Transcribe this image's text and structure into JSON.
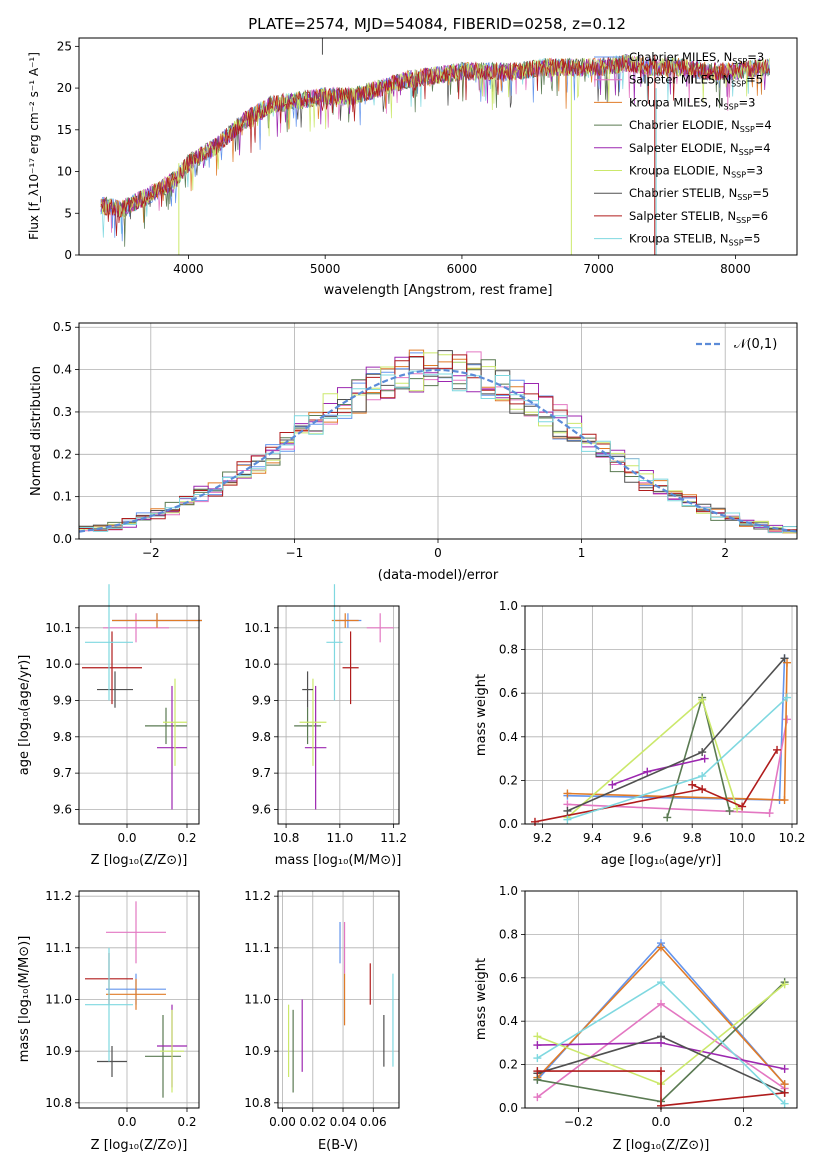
{
  "figure": {
    "title": "PLATE=2574, MJD=54084, FIBERID=0258, z=0.12"
  },
  "legend": [
    {
      "model": "Chabrier MILES",
      "n": "3",
      "color": "#6495ed"
    },
    {
      "model": "Salpeter MILES",
      "n": "5",
      "color": "#e377c2"
    },
    {
      "model": "Kroupa MILES",
      "n": "3",
      "color": "#e07b28"
    },
    {
      "model": "Chabrier ELODIE",
      "n": "4",
      "color": "#5a7a52"
    },
    {
      "model": "Salpeter ELODIE",
      "n": "4",
      "color": "#9c27b0"
    },
    {
      "model": "Kroupa ELODIE",
      "n": "3",
      "color": "#cbe86b"
    },
    {
      "model": "Chabrier STELIB",
      "n": "5",
      "color": "#505050"
    },
    {
      "model": "Salpeter STELIB",
      "n": "6",
      "color": "#b01c1c"
    },
    {
      "model": "Kroupa STELIB",
      "n": "5",
      "color": "#7fd8e0"
    }
  ],
  "chart_data": [
    {
      "id": "spectrum",
      "type": "line",
      "xlabel": "wavelength [Angstrom, rest frame]",
      "ylabel": "Flux [f_λ10⁻¹⁷ erg cm⁻² s⁻¹ A⁻¹]",
      "xlim": [
        3200,
        8450
      ],
      "ylim": [
        0,
        26
      ],
      "xticks": [
        4000,
        5000,
        6000,
        7000,
        8000
      ],
      "yticks": [
        0,
        5,
        10,
        15,
        20,
        25
      ],
      "grid": false,
      "x": [
        3350,
        3500,
        3700,
        3900,
        4000,
        4200,
        4400,
        4600,
        4800,
        5000,
        5200,
        5400,
        5600,
        5800,
        6000,
        6200,
        6400,
        6600,
        6800,
        7000,
        7200,
        7400,
        7600,
        7800,
        8000,
        8200
      ],
      "y": [
        6,
        5.5,
        7,
        9,
        11,
        13,
        16,
        18,
        18.5,
        19,
        19,
        20,
        21,
        21.5,
        22,
        22,
        22,
        22.5,
        22.5,
        22.5,
        23,
        22.5,
        22.5,
        22,
        22,
        22.5
      ]
    },
    {
      "id": "residuals",
      "type": "histogram",
      "xlabel": "(data-model)/error",
      "ylabel": "Normed distribution",
      "xlim": [
        -2.5,
        2.5
      ],
      "ylim": [
        0,
        0.51
      ],
      "xticks": [
        -2,
        -1,
        0,
        1,
        2
      ],
      "yticks": [
        0.0,
        0.1,
        0.2,
        0.3,
        0.4,
        0.5
      ],
      "grid": true,
      "reference_label": "𝒩(0,1)",
      "reference_color": "#5b8bd8"
    },
    {
      "id": "age_vs_Z",
      "type": "scatter",
      "xlabel": "Z [log₁₀(Z/Z⊙)]",
      "ylabel": "age  [log₁₀(age/yr)]",
      "xlim": [
        -0.16,
        0.24
      ],
      "ylim": [
        9.56,
        10.16
      ],
      "xticks": [
        0.0,
        0.2
      ],
      "yticks": [
        9.6,
        9.7,
        9.8,
        9.9,
        10.0,
        10.1
      ],
      "grid": true,
      "points": [
        {
          "x": 0.1,
          "y": 10.12,
          "xe": 0.15,
          "ye": 0.02
        },
        {
          "x": 0.03,
          "y": 10.1,
          "xe": 0.11,
          "ye": 0.04
        },
        {
          "x": 0.1,
          "y": 10.12,
          "xe": 0.15,
          "ye": 0.02
        },
        {
          "x": 0.13,
          "y": 9.83,
          "xe": 0.07,
          "ye": 0.05
        },
        {
          "x": 0.15,
          "y": 9.77,
          "xe": 0.05,
          "ye": 0.17
        },
        {
          "x": 0.16,
          "y": 9.84,
          "xe": 0.04,
          "ye": 0.12
        },
        {
          "x": -0.04,
          "y": 9.93,
          "xe": 0.06,
          "ye": 0.05
        },
        {
          "x": -0.05,
          "y": 9.99,
          "xe": 0.1,
          "ye": 0.1
        },
        {
          "x": -0.06,
          "y": 10.06,
          "xe": 0.08,
          "ye": 0.16
        }
      ]
    },
    {
      "id": "age_vs_mass",
      "type": "scatter",
      "xlabel": "mass [log₁₀(M/M⊙)]",
      "ylabel": "",
      "xlim": [
        10.77,
        11.22
      ],
      "ylim": [
        9.56,
        10.16
      ],
      "xticks": [
        10.8,
        11.0,
        11.2
      ],
      "yticks": [
        9.6,
        9.7,
        9.8,
        9.9,
        10.0,
        10.1
      ],
      "grid": true,
      "points": [
        {
          "x": 11.03,
          "y": 10.12,
          "xe": 0.05,
          "ye": 0.02
        },
        {
          "x": 11.15,
          "y": 10.1,
          "xe": 0.05,
          "ye": 0.04
        },
        {
          "x": 11.02,
          "y": 10.12,
          "xe": 0.05,
          "ye": 0.02
        },
        {
          "x": 10.88,
          "y": 9.83,
          "xe": 0.05,
          "ye": 0.05
        },
        {
          "x": 10.91,
          "y": 9.77,
          "xe": 0.04,
          "ye": 0.17
        },
        {
          "x": 10.9,
          "y": 9.84,
          "xe": 0.05,
          "ye": 0.12
        },
        {
          "x": 10.88,
          "y": 9.93,
          "xe": 0.02,
          "ye": 0.05
        },
        {
          "x": 11.04,
          "y": 9.99,
          "xe": 0.03,
          "ye": 0.1
        },
        {
          "x": 10.98,
          "y": 10.06,
          "xe": 0.03,
          "ye": 0.16
        }
      ]
    },
    {
      "id": "weight_vs_age",
      "type": "line",
      "xlabel": "age  [log₁₀(age/yr)]",
      "ylabel": "mass weight",
      "xlim": [
        9.13,
        10.22
      ],
      "ylim": [
        0,
        1
      ],
      "xticks": [
        9.2,
        9.4,
        9.6,
        9.8,
        10.0,
        10.2
      ],
      "yticks": [
        0.0,
        0.2,
        0.4,
        0.6,
        0.8,
        1.0
      ],
      "grid": true,
      "series": [
        {
          "x": [
            9.3,
            10.15,
            10.17
          ],
          "y": [
            0.13,
            0.11,
            0.76
          ]
        },
        {
          "x": [
            9.3,
            10.11,
            10.18
          ],
          "y": [
            0.09,
            0.05,
            0.48
          ]
        },
        {
          "x": [
            9.3,
            10.17,
            10.18
          ],
          "y": [
            0.14,
            0.11,
            0.74
          ]
        },
        {
          "x": [
            9.7,
            9.84,
            9.95
          ],
          "y": [
            0.03,
            0.58,
            0.06
          ]
        },
        {
          "x": [
            9.48,
            9.62,
            9.85
          ],
          "y": [
            0.18,
            0.24,
            0.3
          ]
        },
        {
          "x": [
            9.3,
            9.84,
            9.98
          ],
          "y": [
            0.03,
            0.57,
            0.07
          ]
        },
        {
          "x": [
            9.3,
            9.84,
            10.17
          ],
          "y": [
            0.06,
            0.33,
            0.76
          ]
        },
        {
          "x": [
            9.17,
            9.84,
            9.8,
            10.0,
            10.14
          ],
          "y": [
            0.01,
            0.16,
            0.18,
            0.08,
            0.34
          ]
        },
        {
          "x": [
            9.3,
            9.84,
            10.18
          ],
          "y": [
            0.02,
            0.22,
            0.58
          ]
        }
      ]
    },
    {
      "id": "mass_vs_Z",
      "type": "scatter",
      "xlabel": "Z [log₁₀(Z/Z⊙)]",
      "ylabel": "mass [log₁₀(M/M⊙)]",
      "xlim": [
        -0.16,
        0.24
      ],
      "ylim": [
        10.79,
        11.21
      ],
      "xticks": [
        0.0,
        0.2
      ],
      "yticks": [
        10.8,
        10.9,
        11.0,
        11.1,
        11.2
      ],
      "grid": true,
      "points": [
        {
          "x": 0.03,
          "y": 11.02,
          "xe": 0.1,
          "ye": 0.03
        },
        {
          "x": 0.03,
          "y": 11.13,
          "xe": 0.1,
          "ye": 0.06
        },
        {
          "x": 0.03,
          "y": 11.01,
          "xe": 0.1,
          "ye": 0.03
        },
        {
          "x": 0.12,
          "y": 10.89,
          "xe": 0.06,
          "ye": 0.08
        },
        {
          "x": 0.15,
          "y": 10.91,
          "xe": 0.05,
          "ye": 0.08
        },
        {
          "x": 0.15,
          "y": 10.9,
          "xe": 0.04,
          "ye": 0.08
        },
        {
          "x": -0.05,
          "y": 10.88,
          "xe": 0.05,
          "ye": 0.03
        },
        {
          "x": -0.06,
          "y": 11.04,
          "xe": 0.08,
          "ye": 0.05
        },
        {
          "x": -0.06,
          "y": 10.99,
          "xe": 0.08,
          "ye": 0.11
        }
      ]
    },
    {
      "id": "mass_vs_ebv",
      "type": "scatter",
      "xlabel": "E(B-V)",
      "ylabel": "",
      "xlim": [
        -0.003,
        0.077
      ],
      "ylim": [
        10.79,
        11.21
      ],
      "xticks": [
        0.0,
        0.02,
        0.04,
        0.06
      ],
      "yticks": [
        10.8,
        10.9,
        11.0,
        11.1,
        11.2
      ],
      "grid": true,
      "points": [
        {
          "x": 0.038,
          "y": 11.11,
          "xe": 0,
          "ye": 0.04
        },
        {
          "x": 0.041,
          "y": 11.1,
          "xe": 0,
          "ye": 0.05
        },
        {
          "x": 0.041,
          "y": 11.0,
          "xe": 0,
          "ye": 0.05
        },
        {
          "x": 0.007,
          "y": 10.9,
          "xe": 0,
          "ye": 0.08
        },
        {
          "x": 0.013,
          "y": 10.93,
          "xe": 0,
          "ye": 0.07
        },
        {
          "x": 0.004,
          "y": 10.92,
          "xe": 0,
          "ye": 0.07
        },
        {
          "x": 0.067,
          "y": 10.92,
          "xe": 0,
          "ye": 0.05
        },
        {
          "x": 0.058,
          "y": 11.03,
          "xe": 0,
          "ye": 0.04
        },
        {
          "x": 0.073,
          "y": 10.96,
          "xe": 0,
          "ye": 0.09
        }
      ]
    },
    {
      "id": "weight_vs_Z",
      "type": "line",
      "xlabel": "Z [log₁₀(Z/Z⊙)]",
      "ylabel": "mass weight",
      "xlim": [
        -0.33,
        0.33
      ],
      "ylim": [
        0,
        1
      ],
      "xticks": [
        -0.2,
        0.0,
        0.2
      ],
      "yticks": [
        0.0,
        0.2,
        0.4,
        0.6,
        0.8,
        1.0
      ],
      "grid": true,
      "series": [
        {
          "x": [
            -0.3,
            0.0,
            0.3
          ],
          "y": [
            0.13,
            0.76,
            0.11
          ]
        },
        {
          "x": [
            -0.3,
            0.0,
            0.3
          ],
          "y": [
            0.05,
            0.48,
            0.09
          ]
        },
        {
          "x": [
            -0.3,
            0.0,
            0.3
          ],
          "y": [
            0.14,
            0.74,
            0.11
          ]
        },
        {
          "x": [
            -0.3,
            0.0,
            0.3
          ],
          "y": [
            0.13,
            0.03,
            0.58
          ]
        },
        {
          "x": [
            -0.3,
            0.0,
            0.3
          ],
          "y": [
            0.29,
            0.3,
            0.18
          ]
        },
        {
          "x": [
            -0.3,
            0.0,
            0.3
          ],
          "y": [
            0.33,
            0.11,
            0.57
          ]
        },
        {
          "x": [
            -0.3,
            0.0,
            0.3
          ],
          "y": [
            0.16,
            0.33,
            0.07
          ]
        },
        {
          "x": [
            -0.3,
            0.0,
            0.0,
            0.3
          ],
          "y": [
            0.17,
            0.17,
            0.01,
            0.07
          ]
        },
        {
          "x": [
            -0.3,
            0.0,
            0.3
          ],
          "y": [
            0.23,
            0.58,
            0.02
          ]
        }
      ]
    }
  ]
}
